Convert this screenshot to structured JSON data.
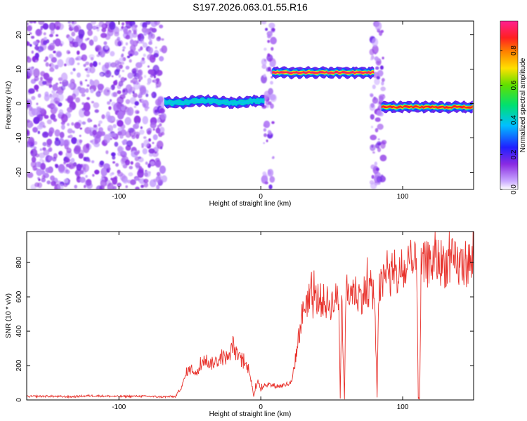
{
  "title": "S197.2026.063.01.55.R16",
  "colors": {
    "snr_line": "#e8322c",
    "axis": "#000000",
    "background": "#ffffff"
  },
  "chart_data": [
    {
      "type": "heatmap",
      "xlabel": "Height of straight line (km)",
      "ylabel": "Frequency (Hz)",
      "xlim": [
        -165,
        150
      ],
      "ylim": [
        -25,
        24
      ],
      "x_ticks": [
        -100,
        0,
        100
      ],
      "y_ticks": [
        -20,
        -10,
        0,
        10,
        20
      ],
      "colorbar": {
        "label": "Normalized spectral amplitude",
        "range": [
          0,
          0.97
        ],
        "ticks": [
          "0.0",
          "0.2",
          "0.4",
          "0.6",
          "0.8"
        ],
        "colormap": "rainbow (purple → blue → cyan → green → yellow → red → magenta)"
      },
      "features": [
        {
          "description": "scattered low-amplitude noise",
          "x_range": [
            -165,
            -68
          ],
          "freq_range": [
            -25,
            24
          ],
          "amplitude": 0.1
        },
        {
          "description": "signal band",
          "x_range": [
            -68,
            3
          ],
          "freq_center": 0.5,
          "amplitude": 0.4
        },
        {
          "description": "vertical noise streak",
          "x_range": [
            2,
            9
          ],
          "freq_range": [
            -25,
            24
          ],
          "amplitude": 0.1
        },
        {
          "description": "signal band",
          "x_range": [
            8,
            80
          ],
          "freq_center": 9,
          "amplitude": 0.95
        },
        {
          "description": "vertical noise streak",
          "x_range": [
            78,
            87
          ],
          "freq_range": [
            -25,
            24
          ],
          "amplitude": 0.1
        },
        {
          "description": "signal band",
          "x_range": [
            85,
            150
          ],
          "freq_center": -1,
          "amplitude": 0.9
        }
      ]
    },
    {
      "type": "line",
      "xlabel": "Height of straight line (km)",
      "ylabel": "SNR (10 * v/v)",
      "xlim": [
        -165,
        150
      ],
      "ylim": [
        0,
        980
      ],
      "x_ticks": [
        -100,
        0,
        100
      ],
      "y_ticks": [
        0,
        200,
        400,
        600,
        800
      ],
      "series": [
        {
          "x": [
            -165,
            -150,
            -135,
            -120,
            -100,
            -85,
            -70,
            -60,
            -55,
            -52,
            -48,
            -45,
            -40,
            -35,
            -30,
            -25,
            -22,
            -20,
            -17,
            -15,
            -12,
            -8,
            -5,
            -2,
            0,
            3,
            8,
            13,
            18,
            22,
            25,
            28,
            30,
            32,
            35,
            40,
            45,
            50,
            55,
            56,
            57,
            59,
            60,
            65,
            70,
            75,
            80,
            82,
            83,
            84,
            86,
            88,
            95,
            100,
            105,
            110,
            111,
            112,
            113,
            115,
            120,
            125,
            130,
            135,
            140,
            145,
            150
          ],
          "values": [
            20,
            22,
            18,
            25,
            20,
            22,
            18,
            20,
            90,
            170,
            180,
            150,
            240,
            210,
            230,
            250,
            240,
            330,
            260,
            240,
            210,
            180,
            20,
            120,
            60,
            90,
            85,
            80,
            90,
            100,
            270,
            440,
            520,
            580,
            560,
            590,
            570,
            560,
            600,
            5,
            600,
            5,
            620,
            640,
            600,
            640,
            640,
            10,
            640,
            640,
            680,
            720,
            710,
            740,
            760,
            790,
            10,
            10,
            760,
            780,
            800,
            810,
            790,
            800,
            780,
            800,
            790
          ]
        }
      ]
    }
  ]
}
